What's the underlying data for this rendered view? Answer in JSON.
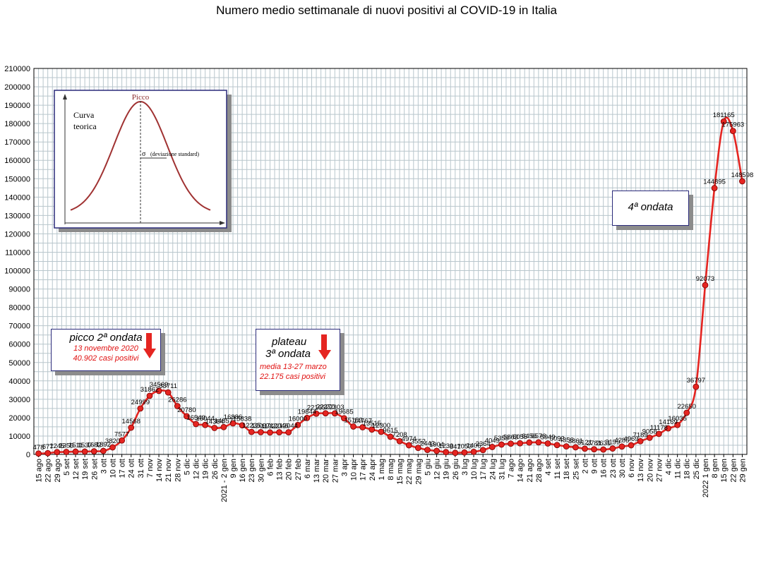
{
  "title": "Numero medio settimanale di nuovi positivi al COVID-19 in Italia",
  "colors": {
    "line": "#e52521",
    "point": "#e52521",
    "grid": "#b8c6cc",
    "box_border": "#2a2a7a",
    "annotation_red": "#e01010"
  },
  "inset": {
    "peak_label": "Picco",
    "curve_label_1": "Curva",
    "curve_label_2": "teorica",
    "sigma_label": "σ",
    "sigma_note": "(deviazione standard)"
  },
  "annotations": {
    "peak2": {
      "head": "picco 2ª ondata",
      "line1": "13 novembre 2020",
      "line2": "40.902 casi positivi"
    },
    "plateau3": {
      "head1": "plateau",
      "head2": "3ª ondata",
      "line1": "media 13-27 marzo",
      "line2": "22.175 casi positivi"
    },
    "wave4": {
      "head": "4ª ondata"
    }
  },
  "chart_data": {
    "type": "line",
    "title": "Numero medio settimanale di nuovi positivi al COVID-19 in Italia",
    "xlabel": "",
    "ylabel": "",
    "ylim": [
      0,
      210000
    ],
    "ytick_step": 10000,
    "grid": true,
    "legend": "none",
    "categories": [
      "15 ago",
      "22 ago",
      "29 ago",
      "5 set",
      "12 set",
      "19 set",
      "26 set",
      "3 ott",
      "10 ott",
      "17 ott",
      "24 ott",
      "31 ott",
      "7 nov",
      "14 nov",
      "21 nov",
      "28 nov",
      "5 dic",
      "12 dic",
      "19 dic",
      "26 dic",
      "2021 - 2 gen",
      "9 gen",
      "16 gen",
      "23 gen",
      "30 gen",
      "6 feb",
      "13 feb",
      "20 feb",
      "27 feb",
      "6 mar",
      "13 mar",
      "20 mar",
      "27 mar",
      "3 apr",
      "10 apr",
      "17 apr",
      "24 apr",
      "1 mag",
      "8 mag",
      "15 mag",
      "22 mag",
      "29 mag",
      "5 giu",
      "12 giu",
      "19 giu",
      "26 giu",
      "3 lug",
      "10 lug",
      "17 lug",
      "24 lug",
      "31 lug",
      "7 ago",
      "14 ago",
      "21 ago",
      "28 ago",
      "4 set",
      "11 set",
      "18 set",
      "25 set",
      "2 ott",
      "9 ott",
      "16 ott",
      "23 ott",
      "30 ott",
      "6 nov",
      "13 nov",
      "20 nov",
      "27 nov",
      "4 dic",
      "11 dic",
      "18 dic",
      "25 dic",
      "2022 1 gen",
      "8 gen",
      "15 gen",
      "22 gen",
      "29 gen"
    ],
    "series": [
      {
        "values": [
          478,
          677,
          1245,
          1355,
          1511,
          1537,
          1682,
          1892,
          3820,
          7577,
          14568,
          24999,
          31862,
          34569,
          33711,
          26286,
          20780,
          16540,
          16044,
          14384,
          14857,
          16886,
          15838,
          12235,
          12097,
          11922,
          12046,
          12044,
          16000,
          19844,
          22165,
          22370,
          22303,
          19685,
          15183,
          14767,
          13515,
          12300,
          9615,
          7208,
          4974,
          3552,
          2443,
          1904,
          1230,
          847,
          1053,
          1406,
          2364,
          4049,
          5359,
          5863,
          6055,
          6456,
          6576,
          5949,
          5093,
          4356,
          3861,
          3121,
          2781,
          2631,
          3199,
          4285,
          4969,
          7189,
          9058,
          11178,
          14169,
          16035,
          22650,
          36797,
          92073,
          144895,
          181165,
          175963,
          148598
        ],
        "labels": [
          "478",
          "677",
          "1245",
          "1355",
          "1511",
          "1537",
          "1682",
          "1892",
          "3820",
          "7577",
          "14568",
          "24999",
          "31862",
          "34569",
          "33711",
          "26286",
          "20780",
          "16540",
          "16044",
          "14384",
          "14857",
          "16886",
          "15838",
          "12235",
          "12097",
          "11922",
          "12046",
          "12044",
          "16000",
          "19844",
          "22165",
          "22370",
          "22303",
          "19685",
          "15183",
          "14767",
          "13515",
          "12300",
          "9615",
          "7208",
          "4974",
          "3552",
          "2443",
          "1904",
          "1230",
          "847",
          "1053",
          "1406",
          "2364",
          "4049",
          "5359",
          "5863",
          "6055",
          "6456",
          "6576",
          "5949",
          "5093",
          "4356",
          "3861",
          "3121",
          "2781",
          "2631",
          "3199",
          "4285",
          "4969",
          "7189",
          "9058",
          "11178",
          "14169",
          "16035",
          "22650",
          "36797",
          "92073",
          "144895",
          "181165",
          "175963",
          "148598"
        ]
      }
    ]
  }
}
